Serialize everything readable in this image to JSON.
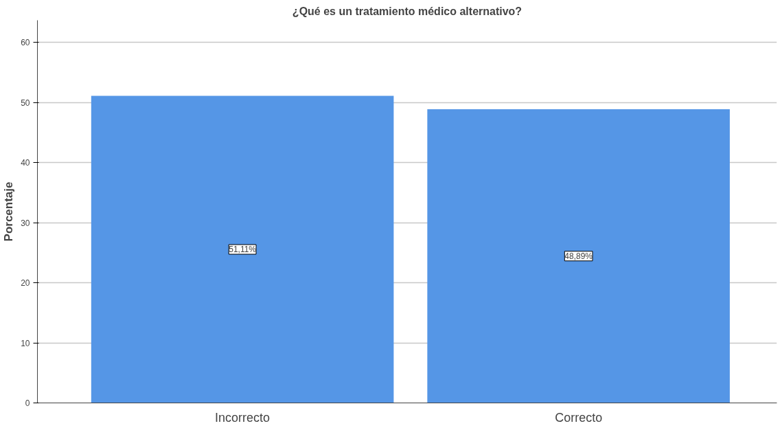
{
  "chart_data": {
    "type": "bar",
    "title": "¿Qué es un tratamiento médico alternativo?",
    "ylabel": "Porcentaje",
    "categories": [
      "Incorrecto",
      "Correcto"
    ],
    "values": [
      51.11,
      48.89
    ],
    "value_labels": [
      "51,11%",
      "48,89%"
    ],
    "color": "#5596e6",
    "ylim": [
      0,
      63.7
    ],
    "yticks": [
      0,
      10,
      20,
      30,
      40,
      50,
      60
    ],
    "grid": "y"
  }
}
